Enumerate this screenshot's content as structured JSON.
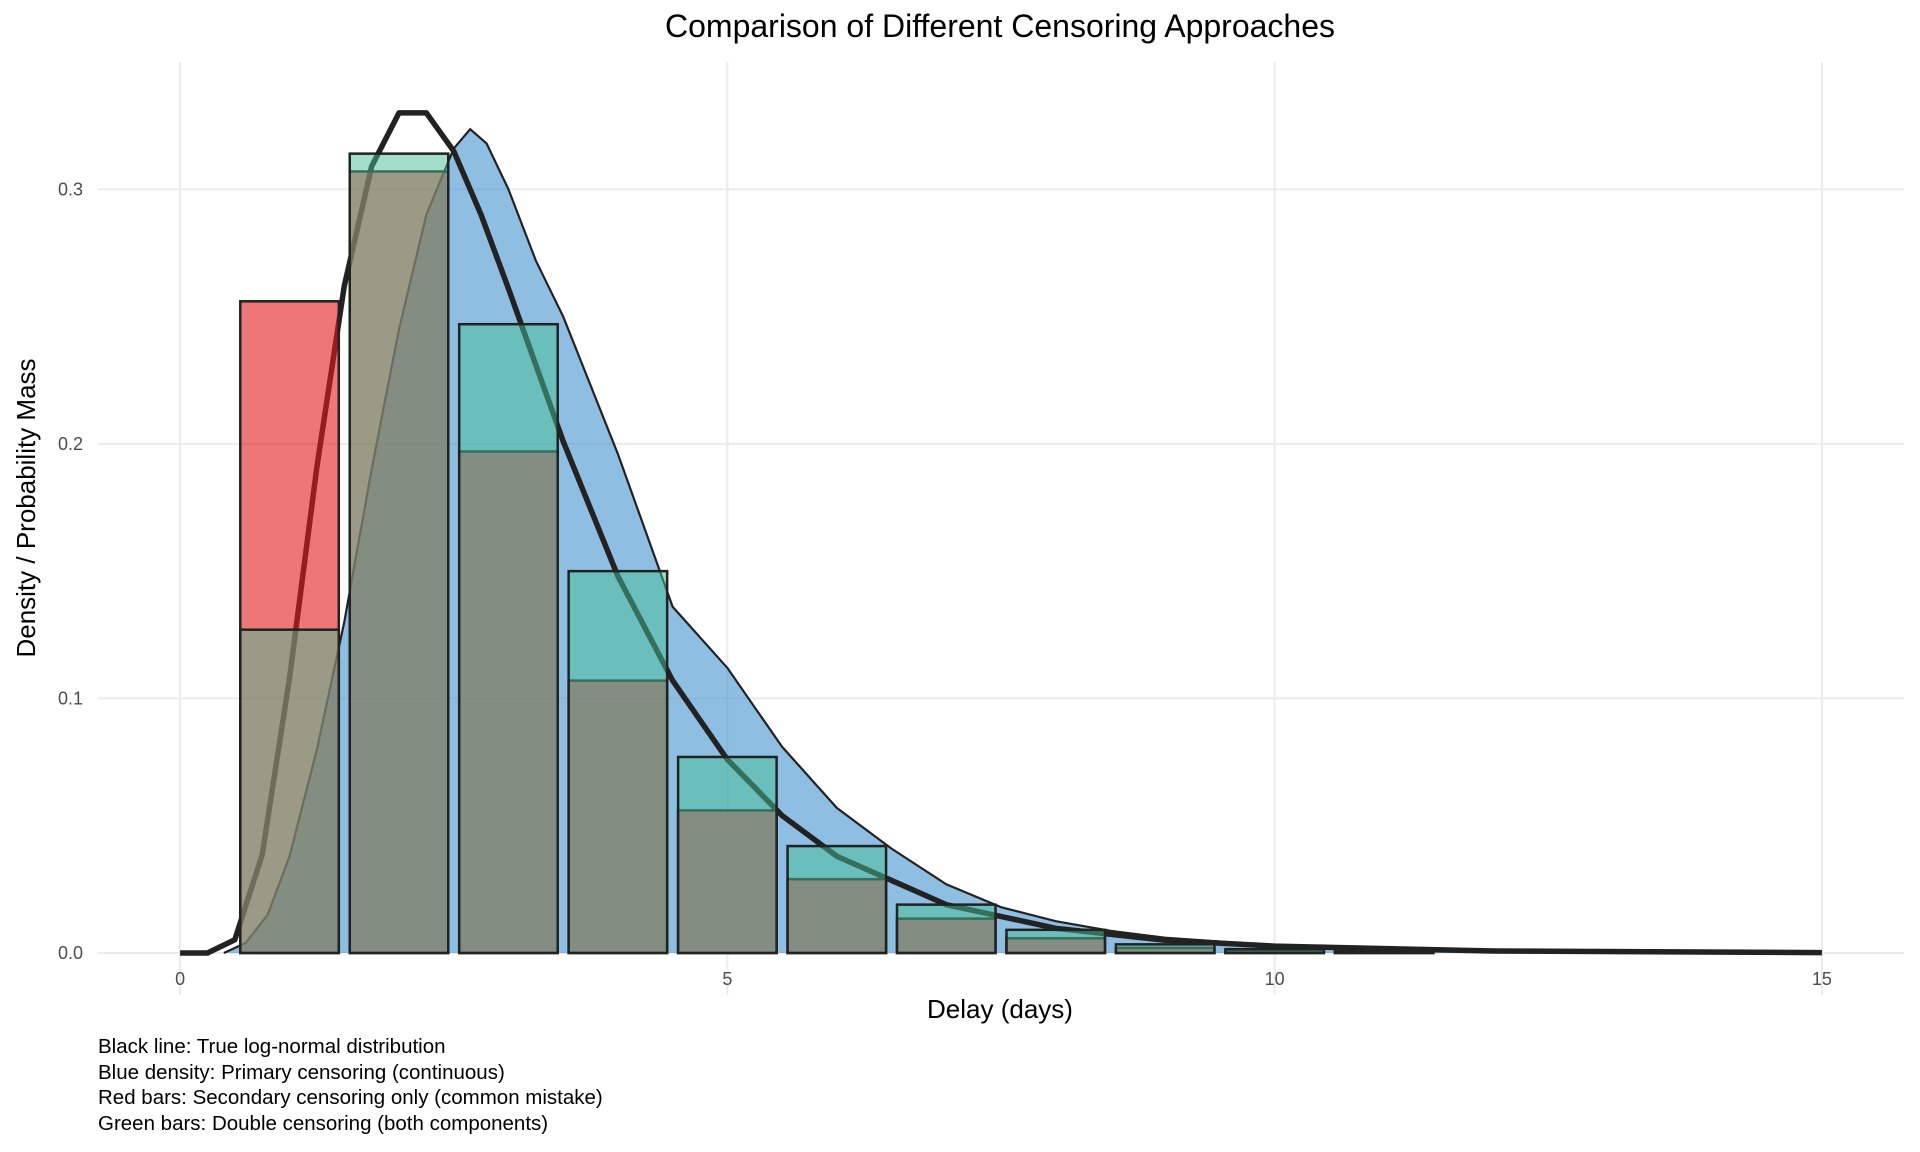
{
  "chart_data": {
    "type": "bar",
    "title": "Comparison of Different Censoring Approaches",
    "xlabel": "Delay (days)",
    "ylabel": "Density / Probability Mass",
    "xlim": [
      -0.75,
      15.75
    ],
    "ylim": [
      -0.0165,
      0.35
    ],
    "x_ticks": [
      0,
      5,
      10,
      15
    ],
    "x_tick_labels": [
      "0",
      "5",
      "10",
      "15"
    ],
    "y_ticks": [
      0,
      0.1,
      0.2,
      0.3
    ],
    "y_tick_labels": [
      "0.0",
      "0.1",
      "0.2",
      "0.3"
    ],
    "grid": true,
    "bar_width": 0.9,
    "categories": [
      1,
      2,
      3,
      4,
      5,
      6,
      7,
      8,
      9,
      10,
      11
    ],
    "series": [
      {
        "kind": "bars",
        "color": "#E41A1C",
        "values": [
          0.256,
          0.307,
          0.197,
          0.107,
          0.056,
          0.029,
          0.0135,
          0.0058,
          0.002,
          0.0008,
          0.0003
        ]
      },
      {
        "kind": "bars",
        "color": "#45BE96",
        "values": [
          0.127,
          0.314,
          0.247,
          0.15,
          0.077,
          0.042,
          0.019,
          0.0091,
          0.0034,
          0.0015,
          0.0007
        ]
      },
      {
        "kind": "density",
        "color": "#4A96D2",
        "x": [
          0.4,
          0.6,
          0.8,
          1.0,
          1.25,
          1.5,
          1.75,
          2.0,
          2.25,
          2.5,
          2.65,
          2.8,
          3.0,
          3.25,
          3.5,
          4.0,
          4.5,
          5.0,
          5.5,
          6.0,
          6.5,
          7.0,
          7.5,
          8.0,
          8.5,
          9.0,
          10.0,
          11.0,
          12.0,
          13.0,
          15.0
        ],
        "y": [
          0,
          0.004,
          0.015,
          0.038,
          0.08,
          0.13,
          0.19,
          0.245,
          0.29,
          0.316,
          0.3236,
          0.318,
          0.3,
          0.272,
          0.25,
          0.196,
          0.136,
          0.112,
          0.081,
          0.057,
          0.041,
          0.027,
          0.018,
          0.0125,
          0.0087,
          0.006,
          0.003,
          0.0017,
          0.001,
          0.0006,
          0.0002
        ]
      },
      {
        "kind": "line",
        "color": "#222222",
        "x": [
          0,
          0.25,
          0.5,
          0.75,
          1.0,
          1.25,
          1.5,
          1.75,
          2.0,
          2.25,
          2.5,
          2.75,
          3.0,
          3.5,
          4.0,
          4.5,
          5.0,
          5.5,
          6.0,
          7.0,
          8.0,
          9.0,
          10.0,
          12.0,
          15.0
        ],
        "y": [
          0,
          0.0,
          0.0052,
          0.0386,
          0.108,
          0.191,
          0.262,
          0.309,
          0.33,
          0.33,
          0.315,
          0.29,
          0.261,
          0.201,
          0.148,
          0.107,
          0.076,
          0.054,
          0.038,
          0.019,
          0.0097,
          0.005,
          0.0027,
          0.0008,
          0.00016
        ]
      }
    ],
    "annotations": [
      "Black line: True log-normal distribution",
      "Blue density: Primary censoring (continuous)",
      "Red bars: Secondary censoring only (common mistake)",
      "Green bars: Double censoring (both components)"
    ]
  }
}
